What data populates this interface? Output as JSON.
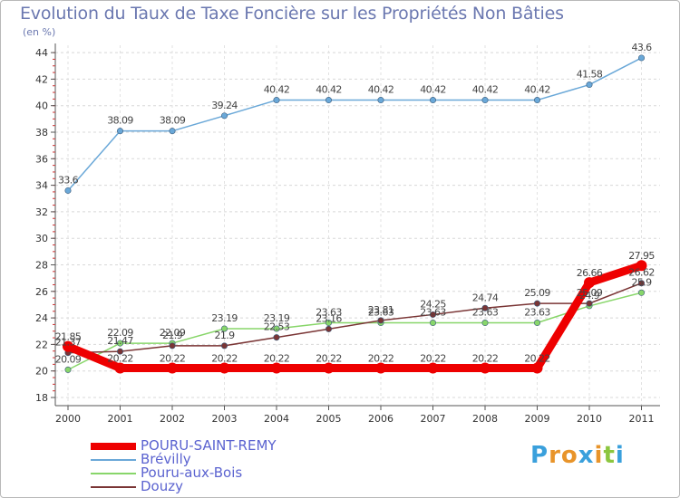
{
  "chart_data": {
    "type": "line",
    "title": "Evolution du Taux de Taxe Foncière sur les Propriétés Non Bâties",
    "ylabel": "(en %)",
    "xlabel": "",
    "categories": [
      "2000",
      "2001",
      "2002",
      "2003",
      "2004",
      "2005",
      "2006",
      "2007",
      "2008",
      "2009",
      "2010",
      "2011"
    ],
    "ylim": [
      18,
      44
    ],
    "yticks": [
      "18",
      "20",
      "22",
      "24",
      "26",
      "28",
      "30",
      "32",
      "34",
      "36",
      "38",
      "40",
      "42",
      "44"
    ],
    "series": [
      {
        "name": "POURU-SAINT-REMY",
        "color": "#ee0000",
        "values": [
          21.85,
          20.22,
          20.22,
          20.22,
          20.22,
          20.22,
          20.22,
          20.22,
          20.22,
          20.22,
          26.66,
          27.95
        ],
        "labels": [
          "21.85",
          "20.22",
          "20.22",
          "20.22",
          "20.22",
          "20.22",
          "20.22",
          "20.22",
          "20.22",
          "20.22",
          "26.66",
          "27.95"
        ]
      },
      {
        "name": "Brévilly",
        "color": "#6aa8d8",
        "values": [
          33.6,
          38.09,
          38.09,
          39.24,
          40.42,
          40.42,
          40.42,
          40.42,
          40.42,
          40.42,
          41.58,
          43.6
        ],
        "labels": [
          "33.6",
          "38.09",
          "38.09",
          "39.24",
          "40.42",
          "40.42",
          "40.42",
          "40.42",
          "40.42",
          "40.42",
          "41.58",
          "43.6"
        ]
      },
      {
        "name": "Pouru-aux-Bois",
        "color": "#88d66a",
        "values": [
          20.09,
          22.09,
          22.09,
          23.19,
          23.19,
          23.63,
          23.63,
          23.63,
          23.63,
          23.63,
          24.9,
          25.9
        ],
        "labels": [
          "20.09",
          "22.09",
          "22.09",
          "23.19",
          "23.19",
          "23.63",
          "23.63",
          "23.63",
          "23.63",
          "23.63",
          "24.9",
          "25.9"
        ]
      },
      {
        "name": "Douzy",
        "color": "#7a3535",
        "values": [
          21.37,
          21.47,
          21.9,
          21.9,
          22.53,
          23.16,
          23.81,
          24.25,
          24.74,
          25.09,
          25.09,
          26.62
        ],
        "labels": [
          "21.37",
          "21.47",
          "21.9",
          "21.9",
          "22.53",
          "23.16",
          "23.81",
          "24.25",
          "24.74",
          "25.09",
          "25.09",
          "26.62"
        ]
      }
    ]
  },
  "legend": {
    "items": [
      {
        "label": "POURU-SAINT-REMY",
        "color": "#ee0000"
      },
      {
        "label": "Brévilly",
        "color": "#6aa8d8"
      },
      {
        "label": "Pouru-aux-Bois",
        "color": "#88d66a"
      },
      {
        "label": "Douzy",
        "color": "#7a3535"
      }
    ]
  },
  "brand": {
    "letters": [
      "P",
      "r",
      "o",
      "x",
      "i",
      "t",
      "i"
    ],
    "colors": [
      "#3aa0dc",
      "#e8942a",
      "#e8942a",
      "#3aa0dc",
      "#e8942a",
      "#8cc63f",
      "#3aa0dc"
    ]
  }
}
